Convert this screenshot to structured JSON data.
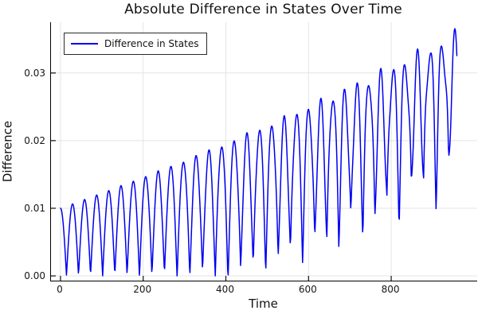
{
  "chart_data": {
    "type": "line",
    "title": "Absolute Difference in States Over Time",
    "xlabel": "Time",
    "ylabel": "Difference",
    "grid": true,
    "legend_position": "top-left",
    "xlim": [
      -23,
      1008
    ],
    "ylim": [
      -0.0007,
      0.0375
    ],
    "xticks": [
      {
        "value": 0,
        "label": "0"
      },
      {
        "value": 200,
        "label": "200"
      },
      {
        "value": 400,
        "label": "400"
      },
      {
        "value": 600,
        "label": "600"
      },
      {
        "value": 800,
        "label": "800"
      }
    ],
    "yticks": [
      {
        "value": 0.0,
        "label": "0.00"
      },
      {
        "value": 0.01,
        "label": "0.01"
      },
      {
        "value": 0.02,
        "label": "0.02"
      },
      {
        "value": 0.03,
        "label": "0.03"
      }
    ],
    "series": [
      {
        "name": "Difference in States",
        "color": "#0000f2",
        "line_width": 1.5,
        "description": "Rectified oscillation (~32 arches, period ~30 time units). Starts at 0.01, early arches swing 0 to 0.01; upper envelope grows to ~0.036 by t=960; lower envelope lifts off 0 after t~400 reaching ~0.017; late cycles show secondary wiggles.",
        "oscillation_period": 30,
        "start_value": 0.01,
        "upper_envelope": [
          [
            0,
            0.01
          ],
          [
            200,
            0.0145
          ],
          [
            400,
            0.0195
          ],
          [
            600,
            0.025
          ],
          [
            800,
            0.0305
          ],
          [
            960,
            0.036
          ]
        ],
        "lower_envelope": [
          [
            0,
            0.0
          ],
          [
            400,
            0.0
          ],
          [
            500,
            0.002
          ],
          [
            600,
            0.004
          ],
          [
            700,
            0.007
          ],
          [
            800,
            0.01
          ],
          [
            960,
            0.017
          ]
        ],
        "generator": {
          "t_start": 0,
          "t_end": 960,
          "dt": 1.2,
          "omega": 0.1051,
          "phase_mod_amp": 0.35,
          "phase_mod_freq": 0.009,
          "peak_env_poly": [
            0.01,
            2.2e-05,
            4.5e-09
          ],
          "floor_start": 400,
          "floor_coeff": 2.9e-05,
          "wiggle_amp": 0.005,
          "wiggle_freq": 0.35,
          "wiggle_phase": 0.8,
          "clamp_min": 0,
          "clamp_max": 0.0368
        }
      }
    ]
  },
  "colors": {
    "background": "#ffffff",
    "grid": "#e4e4e4",
    "axis": "#000000",
    "tick": "#101010",
    "text": "#111111"
  }
}
